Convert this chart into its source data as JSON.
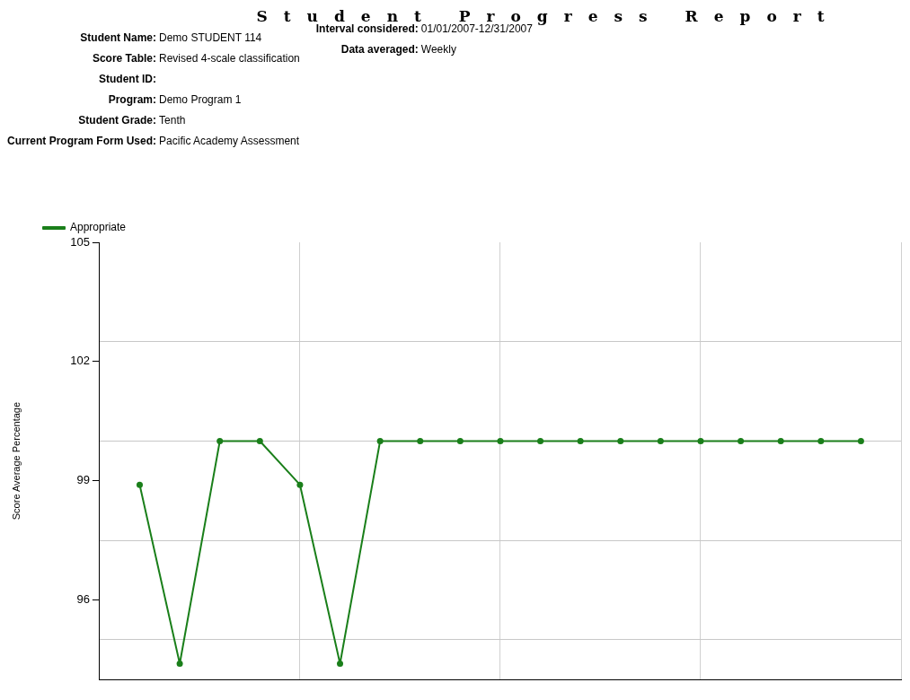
{
  "chart_data": {
    "type": "line",
    "title": "Student Progress Report",
    "annotations": [
      "Student Name: Demo STUDENT 114",
      "Score Table: Revised 4-scale classification",
      "Student ID:",
      "Program: Demo Program 1",
      "Student Grade: Tenth",
      "Current Program Form Used: Pacific Academy Assessment",
      "Interval considered:01/01/2007-12/31/2007",
      "Data averaged:Weekly"
    ],
    "ylabel": "Score Average Percentage",
    "categories": [
      null,
      null,
      null,
      null,
      null,
      null,
      null,
      null,
      null,
      null,
      null,
      null,
      null,
      null,
      null,
      null,
      null,
      null,
      null,
      null,
      null
    ],
    "series": [
      {
        "name": "Appropriate",
        "color": "#1a7f1a",
        "values": [
          null,
          98.9,
          94.4,
          100,
          100,
          98.9,
          94.4,
          100,
          100,
          100,
          100,
          100,
          100,
          100,
          100,
          100,
          100,
          100,
          100,
          100,
          null
        ]
      }
    ],
    "ylim": [
      94,
      105
    ],
    "yticks": [
      {
        "value": 95,
        "label": null
      },
      96,
      {
        "value": 97.5,
        "label": null
      },
      99,
      {
        "value": 100,
        "label": null
      },
      102,
      {
        "value": 102.5,
        "label": null
      },
      105
    ],
    "grid": true,
    "legend": "top left",
    "marker": "circle",
    "line_style": "solid",
    "tick_labels": "y"
  }
}
